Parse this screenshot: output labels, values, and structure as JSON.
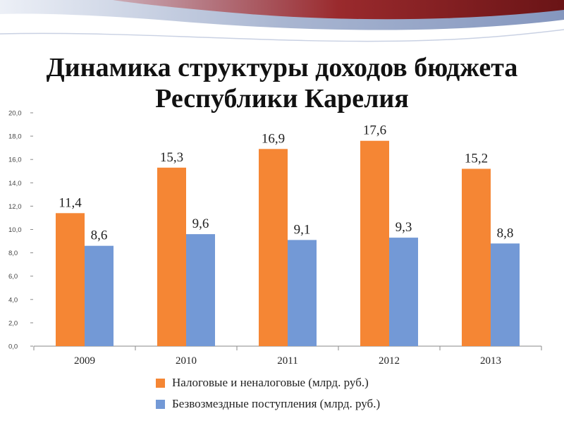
{
  "title_lines": [
    "Динамика структуры доходов бюджета",
    "Республики Карелия"
  ],
  "colors": {
    "series1": "#f58634",
    "series2": "#7399d6",
    "banner_dark": "#7a1b1d",
    "banner_blue": "#7f93bd"
  },
  "chart_data": {
    "type": "bar",
    "categories": [
      "2009",
      "2010",
      "2011",
      "2012",
      "2013"
    ],
    "series": [
      {
        "name": "Налоговые и неналоговые (млрд. руб.)",
        "values": [
          11.4,
          15.3,
          16.9,
          17.6,
          15.2
        ],
        "labels": [
          "11,4",
          "15,3",
          "16,9",
          "17,6",
          "15,2"
        ]
      },
      {
        "name": "Безвозмездные поступления (млрд. руб.)",
        "values": [
          8.6,
          9.6,
          9.1,
          9.3,
          8.8
        ],
        "labels": [
          "8,6",
          "9,6",
          "9,1",
          "9,3",
          "8,8"
        ]
      }
    ],
    "ylim": [
      0,
      20
    ],
    "yticks": [
      "0,0",
      "2,0",
      "4,0",
      "6,0",
      "8,0",
      "10,0",
      "12,0",
      "14,0",
      "16,0",
      "18,0",
      "20,0"
    ],
    "grid": false,
    "legend_position": "bottom"
  }
}
